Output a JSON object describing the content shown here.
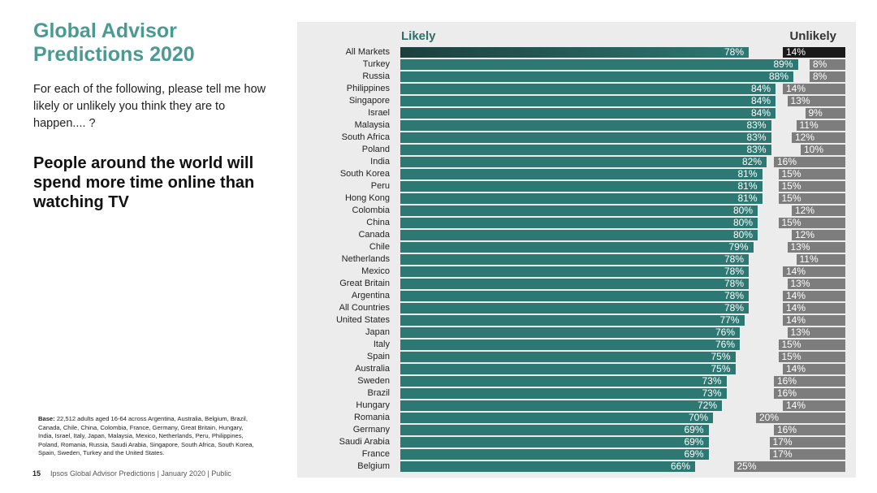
{
  "title": "Global Advisor Predictions 2020",
  "question": "For each of the following, please tell me how likely or unlikely you think they are to happen.... ?",
  "statement": "People around the world will spend more time online than watching TV",
  "base_label": "Base:",
  "base_text": "22,512 adults aged 16-64 across Argentina, Australia, Belgium, Brazil, Canada, Chile, China, Colombia, France, Germany, Great Britain, Hungary, India, Israel, Italy, Japan, Malaysia, Mexico, Netherlands, Peru, Philippines, Poland, Romania, Russia, Saudi Arabia, Singapore, South Africa, South Korea, Spain, Sweden, Turkey and the United States.",
  "footer": {
    "page": "15",
    "text": "Ipsos Global Advisor Predictions | January 2020 | Public"
  },
  "colors": {
    "likely": "#2e7873",
    "likely_total": "#1f4d4a",
    "unlikely": "#7d7d7d",
    "unlikely_total": "#1a1a1a"
  },
  "chart_data": {
    "type": "bar",
    "series_labels": {
      "likely": "Likely",
      "unlikely": "Unlikely"
    },
    "categories": [
      "All Markets",
      "Turkey",
      "Russia",
      "Philippines",
      "Singapore",
      "Israel",
      "Malaysia",
      "South Africa",
      "Poland",
      "India",
      "South Korea",
      "Peru",
      "Hong Kong",
      "Colombia",
      "China",
      "Canada",
      "Chile",
      "Netherlands",
      "Mexico",
      "Great Britain",
      "Argentina",
      "All Countries",
      "United States",
      "Japan",
      "Italy",
      "Spain",
      "Australia",
      "Sweden",
      "Brazil",
      "Hungary",
      "Romania",
      "Germany",
      "Saudi Arabia",
      "France",
      "Belgium"
    ],
    "series": [
      {
        "name": "Likely",
        "values": [
          78,
          89,
          88,
          84,
          84,
          84,
          83,
          83,
          83,
          82,
          81,
          81,
          81,
          80,
          80,
          80,
          79,
          78,
          78,
          78,
          78,
          78,
          77,
          76,
          76,
          75,
          75,
          73,
          73,
          72,
          70,
          69,
          69,
          69,
          66
        ]
      },
      {
        "name": "Unlikely",
        "values": [
          14,
          8,
          8,
          14,
          13,
          9,
          11,
          12,
          10,
          16,
          15,
          15,
          15,
          12,
          15,
          12,
          13,
          11,
          14,
          13,
          14,
          14,
          14,
          13,
          15,
          15,
          14,
          16,
          16,
          14,
          20,
          16,
          17,
          17,
          25
        ]
      }
    ],
    "unit": "%"
  }
}
